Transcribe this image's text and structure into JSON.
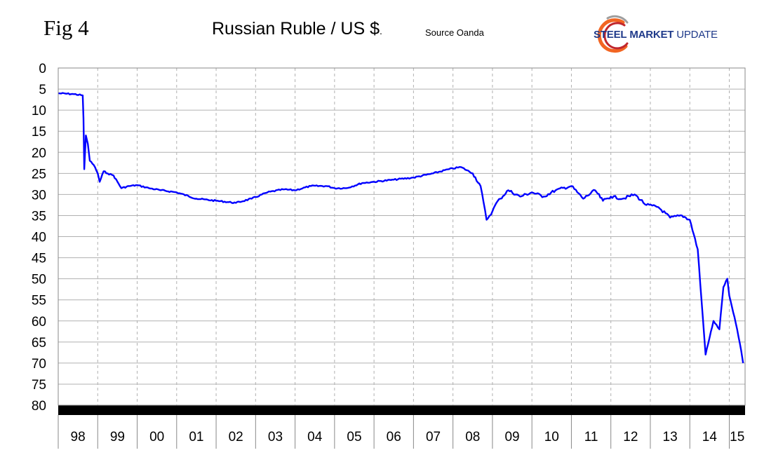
{
  "header": {
    "fig_label": "Fig 4",
    "title": "Russian Ruble / US $",
    "title_suffix": ".",
    "source": "Source Oanda"
  },
  "logo": {
    "steel": "STEEL",
    "market": "MARKET",
    "update": "UPDATE",
    "colors": {
      "text": "#1f3a8a",
      "swoosh_orange": "#f26522",
      "swoosh_red": "#c1272d",
      "swoosh_gray": "#9e9e9e"
    }
  },
  "chart_data": {
    "type": "line",
    "title": "Russian Ruble / US $",
    "xlabel": "",
    "ylabel": "",
    "y_inverted": true,
    "ylim": [
      0,
      80
    ],
    "y_ticks": [
      "0",
      "5",
      "10",
      "15",
      "20",
      "25",
      "30",
      "35",
      "40",
      "45",
      "50",
      "55",
      "60",
      "65",
      "70",
      "75",
      "80"
    ],
    "x_tick_labels": [
      "98",
      "99",
      "00",
      "01",
      "02",
      "03",
      "04",
      "05",
      "06",
      "07",
      "08",
      "09",
      "10",
      "11",
      "12",
      "13",
      "14",
      "15"
    ],
    "xlim": [
      1998.0,
      2015.4
    ],
    "grid": true,
    "line_color": "#0000ff",
    "series": [
      {
        "x": [
          1998.0,
          1998.4,
          1998.62,
          1998.64,
          1998.66,
          1998.7,
          1998.75,
          1998.8,
          1998.9,
          1999.0,
          1999.05,
          1999.15,
          1999.25,
          1999.4,
          1999.6,
          1999.8,
          2000.0,
          2000.3,
          2000.6,
          2001.0,
          2001.5,
          2002.0,
          2002.5,
          2002.9,
          2003.3,
          2003.7,
          2004.0,
          2004.4,
          2004.8,
          2005.0,
          2005.3,
          2005.7,
          2006.0,
          2006.5,
          2007.0,
          2007.5,
          2007.9,
          2008.2,
          2008.5,
          2008.7,
          2008.85,
          2009.0,
          2009.1,
          2009.2,
          2009.4,
          2009.7,
          2010.0,
          2010.3,
          2010.6,
          2011.0,
          2011.3,
          2011.6,
          2011.8,
          2012.0,
          2012.3,
          2012.6,
          2012.9,
          2013.2,
          2013.5,
          2013.8,
          2014.0,
          2014.2,
          2014.4,
          2014.6,
          2014.75,
          2014.85,
          2014.95,
          2015.0,
          2015.1,
          2015.2,
          2015.3,
          2015.35
        ],
        "values": [
          6.0,
          6.2,
          6.5,
          12.0,
          24.0,
          16.0,
          18.0,
          22.0,
          23.0,
          25.0,
          27.0,
          24.5,
          25.0,
          25.5,
          28.5,
          28.0,
          27.8,
          28.5,
          29.0,
          29.5,
          31.0,
          31.5,
          32.0,
          31.0,
          29.5,
          28.8,
          29.0,
          28.0,
          28.0,
          28.5,
          28.5,
          27.3,
          27.0,
          26.5,
          26.0,
          25.0,
          24.0,
          23.5,
          25.0,
          28.0,
          36.0,
          34.0,
          32.0,
          31.0,
          29.0,
          30.5,
          29.5,
          30.5,
          29.0,
          28.0,
          31.0,
          29.0,
          31.5,
          30.5,
          31.0,
          30.0,
          32.5,
          33.0,
          35.5,
          35.0,
          36.0,
          43.0,
          68.0,
          60.0,
          62.0,
          52.0,
          50.0,
          54.0,
          58.0,
          62.0,
          67.0,
          70.0
        ]
      }
    ]
  }
}
